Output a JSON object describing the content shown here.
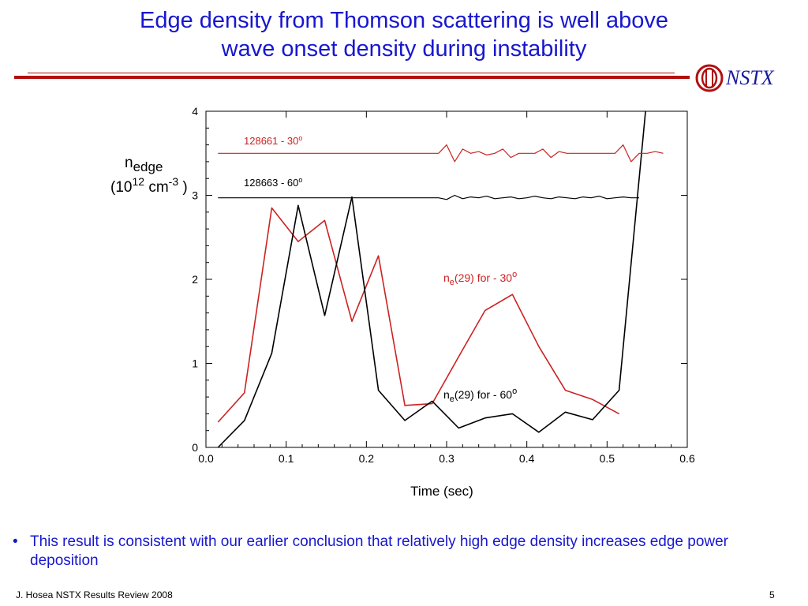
{
  "slide": {
    "title_line1": "Edge density from Thomson scattering is well above",
    "title_line2": "wave onset density during instability",
    "logo_text": "NSTX",
    "bullet_marker": "•",
    "bullet_text": "This result is consistent with our earlier conclusion that relatively high edge density increases edge power deposition",
    "footer_left": "J. Hosea  NSTX Results Review 2008",
    "page_number": "5",
    "colors": {
      "title": "#1717d0",
      "red": "#cc2222",
      "black": "#000000",
      "rule": "#b01010"
    }
  },
  "chart_data": {
    "type": "line",
    "xlabel": "Time (sec)",
    "ylabel": "nedge (1012 cm-3 )",
    "xlim": [
      0.0,
      0.6
    ],
    "ylim": [
      0,
      4
    ],
    "x_ticks": [
      "0.0",
      "0.1",
      "0.2",
      "0.3",
      "0.4",
      "0.5",
      "0.6"
    ],
    "y_ticks": [
      "0",
      "1",
      "2",
      "3",
      "4"
    ],
    "grid": false,
    "annotations": {
      "red_trace": "128661  - 30o",
      "black_trace": "128663  - 60o",
      "ne30": "ne(29) for - 30o",
      "ne60": "ne(29) for - 60o"
    },
    "series": [
      {
        "name": "ne(29) for - 30o",
        "color": "#cc2222",
        "x": [
          0.015,
          0.048,
          0.082,
          0.115,
          0.148,
          0.182,
          0.215,
          0.248,
          0.282,
          0.315,
          0.348,
          0.382,
          0.415,
          0.448,
          0.482,
          0.515
        ],
        "y": [
          0.3,
          0.65,
          2.85,
          2.45,
          2.7,
          1.5,
          2.28,
          0.5,
          0.52,
          1.08,
          1.63,
          1.82,
          1.2,
          0.68,
          0.57,
          0.4
        ]
      },
      {
        "name": "ne(29) for - 60o",
        "color": "#000000",
        "x": [
          0.015,
          0.048,
          0.082,
          0.115,
          0.148,
          0.182,
          0.215,
          0.248,
          0.282,
          0.315,
          0.348,
          0.382,
          0.415,
          0.448,
          0.482,
          0.515,
          0.548
        ],
        "y": [
          0.0,
          0.32,
          1.12,
          2.88,
          1.57,
          2.98,
          0.68,
          0.32,
          0.55,
          0.23,
          0.35,
          0.4,
          0.18,
          0.42,
          0.33,
          0.68,
          4.0
        ]
      },
      {
        "name": "128661  - 30o",
        "color": "#cc2222",
        "x": [
          0.015,
          0.29,
          0.3,
          0.31,
          0.32,
          0.33,
          0.34,
          0.35,
          0.36,
          0.37,
          0.38,
          0.39,
          0.4,
          0.41,
          0.42,
          0.43,
          0.44,
          0.45,
          0.46,
          0.47,
          0.48,
          0.49,
          0.5,
          0.51,
          0.52,
          0.53,
          0.54,
          0.55,
          0.56,
          0.57
        ],
        "y": [
          3.5,
          3.5,
          3.6,
          3.4,
          3.55,
          3.5,
          3.52,
          3.48,
          3.5,
          3.55,
          3.45,
          3.5,
          3.5,
          3.5,
          3.55,
          3.45,
          3.52,
          3.5,
          3.5,
          3.5,
          3.5,
          3.5,
          3.5,
          3.5,
          3.6,
          3.4,
          3.5,
          3.5,
          3.52,
          3.5
        ]
      },
      {
        "name": "128663  - 60o",
        "color": "#000000",
        "x": [
          0.015,
          0.29,
          0.3,
          0.31,
          0.32,
          0.33,
          0.34,
          0.35,
          0.36,
          0.37,
          0.38,
          0.39,
          0.4,
          0.41,
          0.42,
          0.43,
          0.44,
          0.45,
          0.46,
          0.47,
          0.48,
          0.49,
          0.5,
          0.51,
          0.52,
          0.53,
          0.54
        ],
        "y": [
          2.97,
          2.97,
          2.95,
          3.0,
          2.96,
          2.98,
          2.97,
          2.99,
          2.96,
          2.97,
          2.98,
          2.96,
          2.97,
          2.99,
          2.97,
          2.96,
          2.98,
          2.97,
          2.96,
          2.98,
          2.97,
          2.99,
          2.96,
          2.97,
          2.98,
          2.97,
          2.97
        ]
      }
    ]
  }
}
